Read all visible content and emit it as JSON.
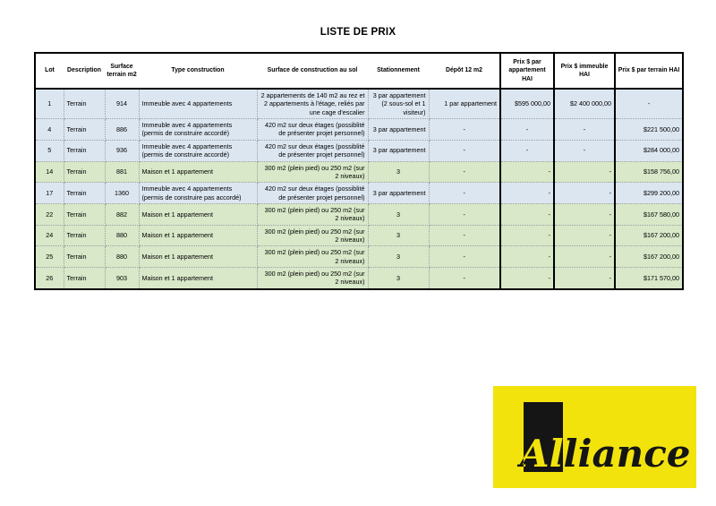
{
  "page": {
    "title": "LISTE DE PRIX"
  },
  "colors": {
    "row_blue": "#dce6f1",
    "row_green": "#d8e8c8",
    "border_black": "#000000"
  },
  "table": {
    "columns": [
      {
        "id": "lot",
        "label": "Lot"
      },
      {
        "id": "description",
        "label": "Description"
      },
      {
        "id": "surface-terrain",
        "label": "Surface terrain m2"
      },
      {
        "id": "type-construction",
        "label": "Type construction"
      },
      {
        "id": "surface-construction",
        "label": "Surface de construction au sol"
      },
      {
        "id": "stationnement",
        "label": "Stationnement"
      },
      {
        "id": "depot",
        "label": "Dépôt 12 m2"
      },
      {
        "id": "prix-appartement",
        "label": "Prix $ par appartement HAI"
      },
      {
        "id": "prix-immeuble",
        "label": "Prix $ immeuble HAI"
      },
      {
        "id": "prix-terrain",
        "label": "Prix $ par terrain HAI"
      }
    ],
    "rows": [
      {
        "tint": "blue",
        "cells": [
          {
            "t": "1",
            "a": "c"
          },
          {
            "t": "Terrain",
            "a": "l"
          },
          {
            "t": "914",
            "a": "c"
          },
          {
            "t": "Immeuble avec 4 appartements",
            "a": "l"
          },
          {
            "t": "2 appartements de 140 m2 au rez et 2 appartements à l'étage, reliés par une cage d'escalier",
            "a": "r"
          },
          {
            "t": "3 par appartement (2 sous-sol et 1 visiteur)",
            "a": "r"
          },
          {
            "t": "1 par appartement",
            "a": "r"
          },
          {
            "t": "$595 000,00",
            "a": "r"
          },
          {
            "t": "$2 400 000,00",
            "a": "r"
          },
          {
            "t": "-",
            "a": "c"
          }
        ]
      },
      {
        "tint": "blue",
        "cells": [
          {
            "t": "4",
            "a": "c"
          },
          {
            "t": "Terrain",
            "a": "l"
          },
          {
            "t": "886",
            "a": "c"
          },
          {
            "t": "Immeuble avec 4 appartements (permis de construire accordé)",
            "a": "l"
          },
          {
            "t": "420 m2 sur deux étages (possiblité de présenter projet personnel)",
            "a": "r"
          },
          {
            "t": "3 par appartement",
            "a": "r"
          },
          {
            "t": "-",
            "a": "c"
          },
          {
            "t": "-",
            "a": "c"
          },
          {
            "t": "-",
            "a": "c"
          },
          {
            "t": "$221 500,00",
            "a": "r"
          }
        ]
      },
      {
        "tint": "blue",
        "cells": [
          {
            "t": "5",
            "a": "c"
          },
          {
            "t": "Terrain",
            "a": "l"
          },
          {
            "t": "936",
            "a": "c"
          },
          {
            "t": "Immeuble avec 4 appartements (permis de construire accordé)",
            "a": "l"
          },
          {
            "t": "420 m2 sur deux étages (possiblité de présenter projet personnel)",
            "a": "r"
          },
          {
            "t": "3 par appartement",
            "a": "r"
          },
          {
            "t": "-",
            "a": "c"
          },
          {
            "t": "-",
            "a": "c"
          },
          {
            "t": "-",
            "a": "c"
          },
          {
            "t": "$284 000,00",
            "a": "r"
          }
        ]
      },
      {
        "tint": "green",
        "cells": [
          {
            "t": "14",
            "a": "c"
          },
          {
            "t": "Terrain",
            "a": "l"
          },
          {
            "t": "881",
            "a": "c"
          },
          {
            "t": "Maison et 1 appartement",
            "a": "l"
          },
          {
            "t": "300 m2 (plein pied) ou 250 m2 (sur 2 niveaux)",
            "a": "r"
          },
          {
            "t": "3",
            "a": "c"
          },
          {
            "t": "-",
            "a": "c"
          },
          {
            "t": "-",
            "a": "r"
          },
          {
            "t": "-",
            "a": "r"
          },
          {
            "t": "$158 756,00",
            "a": "r"
          }
        ]
      },
      {
        "tint": "blue",
        "cells": [
          {
            "t": "17",
            "a": "c"
          },
          {
            "t": "Terrain",
            "a": "l"
          },
          {
            "t": "1360",
            "a": "c"
          },
          {
            "t": "Immeuble avec 4 appartements (permis de construire pas accordé)",
            "a": "l"
          },
          {
            "t": "420 m2 sur deux étages (possiblité de présenter projet personnel)",
            "a": "r"
          },
          {
            "t": "3 par appartement",
            "a": "r"
          },
          {
            "t": "-",
            "a": "c"
          },
          {
            "t": "-",
            "a": "r"
          },
          {
            "t": "-",
            "a": "r"
          },
          {
            "t": "$299 200,00",
            "a": "r"
          }
        ]
      },
      {
        "tint": "green",
        "cells": [
          {
            "t": "22",
            "a": "c"
          },
          {
            "t": "Terrain",
            "a": "l"
          },
          {
            "t": "882",
            "a": "c"
          },
          {
            "t": "Maison et 1 appartement",
            "a": "l"
          },
          {
            "t": "300 m2 (plein pied) ou 250 m2 (sur 2 niveaux)",
            "a": "r"
          },
          {
            "t": "3",
            "a": "c"
          },
          {
            "t": "-",
            "a": "c"
          },
          {
            "t": "-",
            "a": "r"
          },
          {
            "t": "-",
            "a": "r"
          },
          {
            "t": "$167 580,00",
            "a": "r"
          }
        ]
      },
      {
        "tint": "green",
        "cells": [
          {
            "t": "24",
            "a": "c"
          },
          {
            "t": "Terrain",
            "a": "l"
          },
          {
            "t": "880",
            "a": "c"
          },
          {
            "t": "Maison et 1 appartement",
            "a": "l"
          },
          {
            "t": "300 m2 (plein pied) ou 250 m2 (sur 2 niveaux)",
            "a": "r"
          },
          {
            "t": "3",
            "a": "c"
          },
          {
            "t": "-",
            "a": "c"
          },
          {
            "t": "-",
            "a": "r"
          },
          {
            "t": "-",
            "a": "r"
          },
          {
            "t": "$167 200,00",
            "a": "r"
          }
        ]
      },
      {
        "tint": "green",
        "cells": [
          {
            "t": "25",
            "a": "c"
          },
          {
            "t": "Terrain",
            "a": "l"
          },
          {
            "t": "880",
            "a": "c"
          },
          {
            "t": "Maison et 1 appartement",
            "a": "l"
          },
          {
            "t": "300 m2 (plein pied) ou 250 m2 (sur 2 niveaux)",
            "a": "r"
          },
          {
            "t": "3",
            "a": "c"
          },
          {
            "t": "-",
            "a": "c"
          },
          {
            "t": "-",
            "a": "r"
          },
          {
            "t": "-",
            "a": "r"
          },
          {
            "t": "$167 200,00",
            "a": "r"
          }
        ]
      },
      {
        "tint": "green",
        "cells": [
          {
            "t": "26",
            "a": "c"
          },
          {
            "t": "Terrain",
            "a": "l"
          },
          {
            "t": "903",
            "a": "c"
          },
          {
            "t": "Maison et 1 appartement",
            "a": "l"
          },
          {
            "t": "300 m2 (plein pied) ou 250 m2 (sur 2 niveaux)",
            "a": "r"
          },
          {
            "t": "3",
            "a": "c"
          },
          {
            "t": "-",
            "a": "c"
          },
          {
            "t": "-",
            "a": "r"
          },
          {
            "t": "-",
            "a": "r"
          },
          {
            "t": "$171 570,00",
            "a": "r"
          }
        ]
      }
    ]
  },
  "logo": {
    "text": "Alliance",
    "background_color": "#f2e30d",
    "ink_color": "#151515"
  }
}
